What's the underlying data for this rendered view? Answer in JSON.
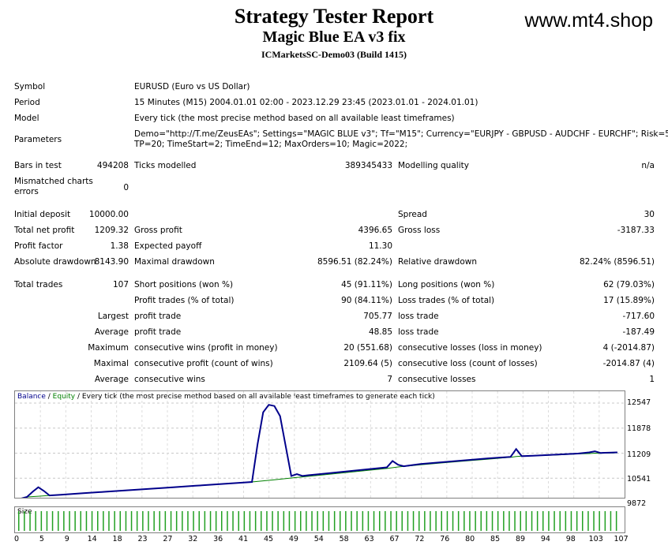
{
  "header": {
    "title": "Strategy Tester Report",
    "subtitle": "Magic Blue EA v3 fix",
    "server": "ICMarketsSC-Demo03 (Build 1415)",
    "site": "www.mt4.shop"
  },
  "info": {
    "symbol_label": "Symbol",
    "symbol_value": "EURUSD (Euro vs US Dollar)",
    "period_label": "Period",
    "period_value": "15 Minutes (M15) 2004.01.01 02:00 - 2023.12.29 23:45 (2023.01.01 - 2024.01.01)",
    "model_label": "Model",
    "model_value": "Every tick (the most precise method based on all available least timeframes)",
    "params_label": "Parameters",
    "params_line1": "Demo=\"http://T.me/ZeusEAs\"; Settings=\"MAGIC BLUE v3\"; Tf=\"M15\"; Currency=\"EURJPY - GBPUSD - AUDCHF - EURCHF\"; Risk=5;",
    "params_line2": "TP=20; TimeStart=2; TimeEnd=12; MaxOrders=10; Magic=2022;"
  },
  "stats": {
    "bars_label": "Bars in test",
    "bars_value": "494208",
    "ticks_label": "Ticks modelled",
    "ticks_value": "389345433",
    "quality_label": "Modelling quality",
    "quality_value": "n/a",
    "mismatch_label1": "Mismatched charts",
    "mismatch_label2": "errors",
    "mismatch_value": "0",
    "deposit_label": "Initial deposit",
    "deposit_value": "10000.00",
    "spread_label": "Spread",
    "spread_value": "30",
    "netprofit_label": "Total net profit",
    "netprofit_value": "1209.32",
    "grossprofit_label": "Gross profit",
    "grossprofit_value": "4396.65",
    "grossloss_label": "Gross loss",
    "grossloss_value": "-3187.33",
    "pf_label": "Profit factor",
    "pf_value": "1.38",
    "payoff_label": "Expected payoff",
    "payoff_value": "11.30",
    "absdd_label": "Absolute drawdown",
    "absdd_value": "8143.90",
    "maxdd_label": "Maximal drawdown",
    "maxdd_value": "8596.51 (82.24%)",
    "reldd_label": "Relative drawdown",
    "reldd_value": "82.24% (8596.51)",
    "trades_label": "Total trades",
    "trades_value": "107",
    "short_label": "Short positions (won %)",
    "short_value": "45 (91.11%)",
    "long_label": "Long positions (won %)",
    "long_value": "62 (79.03%)",
    "ptrades_label": "Profit trades (% of total)",
    "ptrades_value": "90 (84.11%)",
    "ltrades_label": "Loss trades (% of total)",
    "ltrades_value": "17 (15.89%)",
    "largest_label": "Largest",
    "largest_profit_label": "profit trade",
    "largest_profit_value": "705.77",
    "largest_loss_label": "loss trade",
    "largest_loss_value": "-717.60",
    "average_label": "Average",
    "average_profit_label": "profit trade",
    "average_profit_value": "48.85",
    "average_loss_label": "loss trade",
    "average_loss_value": "-187.49",
    "maximum_label": "Maximum",
    "max_wins_label": "consecutive wins (profit in money)",
    "max_wins_value": "20 (551.68)",
    "max_losses_label": "consecutive losses (loss in money)",
    "max_losses_value": "4 (-2014.87)",
    "maximal_label": "Maximal",
    "mx_profit_label": "consecutive profit (count of wins)",
    "mx_profit_value": "2109.64 (5)",
    "mx_loss_label": "consecutive loss (count of losses)",
    "mx_loss_value": "-2014.87 (4)",
    "avg2_label": "Average",
    "avg_wins_label": "consecutive wins",
    "avg_wins_value": "7",
    "avg_losses_label": "consecutive losses",
    "avg_losses_value": "1"
  },
  "graph": {
    "legend_balance": "Balance",
    "legend_sep1": " / ",
    "legend_equity": "Equity",
    "legend_rest": " / Every tick (the most precise method based on all available least timeframes to generate each tick)",
    "size_label": "Size",
    "y_ticks": [
      "12547",
      "11878",
      "11209",
      "10541",
      "9872"
    ],
    "x_ticks": [
      "0",
      "5",
      "9",
      "14",
      "18",
      "23",
      "27",
      "32",
      "36",
      "41",
      "45",
      "49",
      "54",
      "58",
      "63",
      "67",
      "72",
      "76",
      "80",
      "85",
      "89",
      "94",
      "98",
      "103",
      "107"
    ],
    "balance_color": "#00008b",
    "equity_color": "#008000"
  },
  "chart_data": {
    "type": "line",
    "ylim": [
      9872,
      12700
    ],
    "xlim": [
      0,
      108
    ],
    "series": [
      {
        "name": "Balance",
        "x": [
          0,
          2,
          4,
          6,
          8,
          10,
          14,
          18,
          22,
          26,
          30,
          34,
          38,
          42,
          44,
          46,
          48,
          50,
          52,
          54,
          58,
          62,
          66,
          68,
          70,
          72,
          76,
          80,
          84,
          88,
          89,
          90,
          92,
          96,
          100,
          102,
          103,
          104,
          106,
          107
        ],
        "y": [
          9960,
          10040,
          10060,
          10080,
          10100,
          10120,
          10160,
          10200,
          10240,
          10280,
          10320,
          10360,
          10400,
          10440,
          10470,
          10500,
          10530,
          10560,
          10590,
          10620,
          10680,
          10740,
          10800,
          10840,
          10870,
          10900,
          10950,
          11000,
          11050,
          11100,
          11120,
          11130,
          11140,
          11160,
          11190,
          11200,
          11210,
          11205,
          11215,
          11220
        ]
      },
      {
        "name": "Equity",
        "x": [
          0,
          2,
          3,
          4,
          5,
          6,
          8,
          12,
          16,
          20,
          24,
          28,
          32,
          36,
          40,
          42,
          43,
          44,
          45,
          46,
          47,
          48,
          49,
          50,
          51,
          52,
          54,
          58,
          62,
          66,
          67,
          68,
          69,
          70,
          72,
          76,
          80,
          84,
          88,
          89,
          90,
          92,
          96,
          100,
          102,
          103,
          104,
          106,
          107
        ],
        "y": [
          9960,
          10040,
          10180,
          10300,
          10200,
          10080,
          10100,
          10140,
          10180,
          10220,
          10260,
          10300,
          10340,
          10380,
          10420,
          10440,
          11450,
          12300,
          12500,
          12470,
          12200,
          11400,
          10600,
          10650,
          10600,
          10620,
          10650,
          10710,
          10770,
          10830,
          11000,
          10900,
          10860,
          10880,
          10920,
          10970,
          11020,
          11070,
          11110,
          11320,
          11130,
          11140,
          11170,
          11200,
          11230,
          11260,
          11215,
          11225,
          11230
        ]
      }
    ],
    "size_bars": 107
  }
}
